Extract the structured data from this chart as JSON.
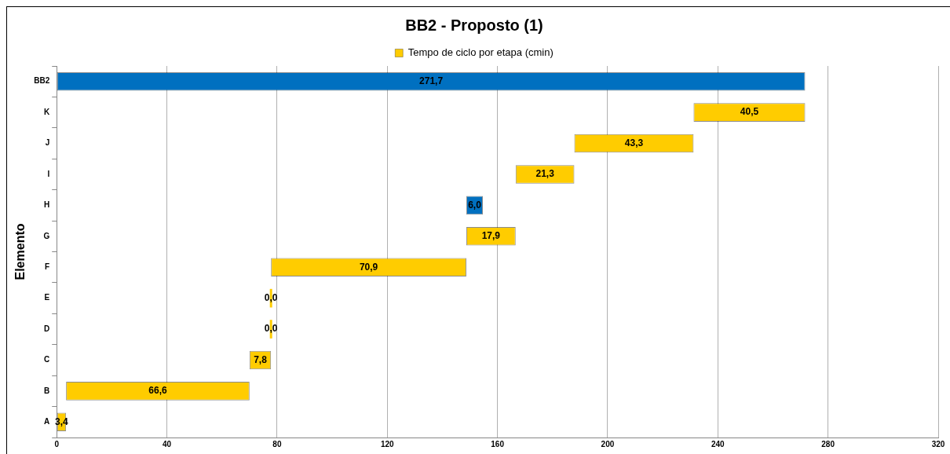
{
  "chart_data": {
    "type": "bar",
    "orientation": "horizontal",
    "title": "BB2 - Proposto (1)",
    "ylabel": "Elemento",
    "categories": [
      "BB2",
      "K",
      "J",
      "I",
      "H",
      "G",
      "F",
      "E",
      "D",
      "C",
      "B",
      "A"
    ],
    "series": [
      {
        "name": "Tempo de ciclo por etapa (cmin)",
        "color": "#ffcc00",
        "values": [
          271.7,
          40.5,
          43.3,
          21.3,
          6.0,
          17.9,
          70.9,
          0.0,
          0.0,
          7.8,
          66.6,
          3.4
        ],
        "base": [
          0,
          231.2,
          187.9,
          166.6,
          148.7,
          148.7,
          77.8,
          77.8,
          77.8,
          70.0,
          3.4,
          0
        ],
        "colors": [
          "#0070c0",
          "#ffcc00",
          "#ffcc00",
          "#ffcc00",
          "#0070c0",
          "#ffcc00",
          "#ffcc00",
          "#ffcc00",
          "#ffcc00",
          "#ffcc00",
          "#ffcc00",
          "#ffcc00"
        ],
        "value_labels": [
          "271,7",
          "40,5",
          "43,3",
          "21,3",
          "6,0",
          "17,9",
          "70,9",
          "0,0",
          "0,0",
          "7,8",
          "66,6",
          "3,4"
        ]
      }
    ],
    "xlim": [
      0,
      320
    ],
    "xticks": [
      0,
      40,
      80,
      120,
      160,
      200,
      240,
      280,
      320
    ],
    "grid": "x",
    "legend": "top"
  }
}
